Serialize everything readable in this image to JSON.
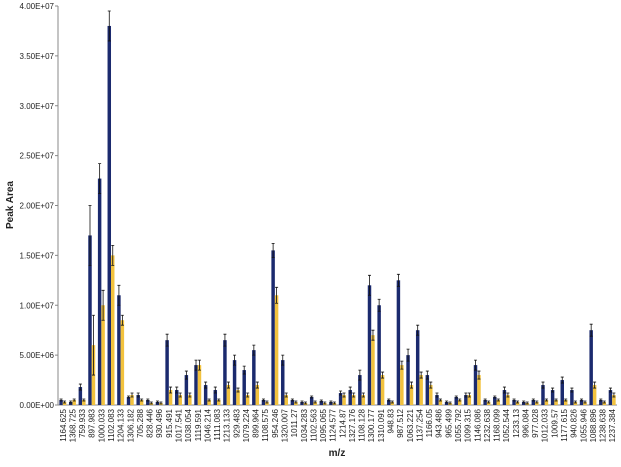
{
  "chart_data": {
    "type": "bar",
    "categories": [
      "1164.625",
      "1368.725",
      "759.933",
      "897.983",
      "1000.033",
      "1102.083",
      "1204.133",
      "1306.182",
      "705.288",
      "828.446",
      "930.496",
      "915.491",
      "1017.541",
      "1038.054",
      "1119.591",
      "1046.214",
      "1111.083",
      "1213.133",
      "929.483",
      "1079.224",
      "899.964",
      "1108.575",
      "954.246",
      "1320.007",
      "1011.27",
      "1034.283",
      "1102.563",
      "1095.065",
      "1124.577",
      "1214.87",
      "1327.176",
      "1108.128",
      "1300.177",
      "1310.091",
      "948.83",
      "987.512",
      "1063.221",
      "1137.254",
      "1166.05",
      "943.486",
      "965.499",
      "1055.792",
      "1099.315",
      "1146.086",
      "1232.638",
      "1168.099",
      "1052.544",
      "1233.13",
      "996.084",
      "977.028",
      "1012.033",
      "1009.57",
      "1177.615",
      "940.826",
      "1055.946",
      "1088.896",
      "1238.638",
      "1237.384"
    ],
    "series": [
      {
        "color": "#1b2a6e",
        "values": [
          500000,
          300000,
          1800000,
          17000000,
          22700000,
          38000000,
          11000000,
          800000,
          1000000,
          500000,
          300000,
          6500000,
          1500000,
          3000000,
          4000000,
          2000000,
          1500000,
          6500000,
          4500000,
          3500000,
          5500000,
          500000,
          15500000,
          4500000,
          500000,
          300000,
          800000,
          400000,
          300000,
          1200000,
          1500000,
          3000000,
          12000000,
          10000000,
          500000,
          12500000,
          5000000,
          7500000,
          3000000,
          1000000,
          300000,
          800000,
          1000000,
          4000000,
          500000,
          800000,
          1500000,
          500000,
          300000,
          500000,
          2000000,
          1500000,
          2500000,
          1500000,
          500000,
          7500000,
          500000,
          1500000
        ],
        "errors": [
          100000,
          100000,
          300000,
          3000000,
          1500000,
          1500000,
          1000000,
          100000,
          200000,
          100000,
          100000,
          600000,
          300000,
          400000,
          500000,
          300000,
          300000,
          600000,
          500000,
          400000,
          500000,
          100000,
          700000,
          500000,
          100000,
          100000,
          100000,
          100000,
          100000,
          200000,
          300000,
          500000,
          1000000,
          600000,
          100000,
          600000,
          600000,
          500000,
          400000,
          200000,
          100000,
          100000,
          200000,
          500000,
          100000,
          100000,
          300000,
          100000,
          100000,
          100000,
          300000,
          200000,
          300000,
          200000,
          100000,
          600000,
          100000,
          200000
        ]
      },
      {
        "color": "#f2c23e",
        "values": [
          300000,
          500000,
          500000,
          6000000,
          10000000,
          15000000,
          8500000,
          1000000,
          500000,
          200000,
          200000,
          1500000,
          1000000,
          1000000,
          4000000,
          500000,
          500000,
          2000000,
          1500000,
          1000000,
          2000000,
          300000,
          11000000,
          1000000,
          300000,
          200000,
          300000,
          200000,
          200000,
          1000000,
          1000000,
          1000000,
          7000000,
          3000000,
          300000,
          4000000,
          2000000,
          3000000,
          2000000,
          500000,
          200000,
          500000,
          1000000,
          3000000,
          300000,
          500000,
          1000000,
          300000,
          200000,
          300000,
          500000,
          500000,
          500000,
          300000,
          300000,
          2000000,
          300000,
          1000000
        ],
        "errors": [
          100000,
          100000,
          100000,
          3000000,
          1500000,
          1000000,
          500000,
          200000,
          100000,
          100000,
          100000,
          300000,
          200000,
          200000,
          500000,
          100000,
          100000,
          300000,
          200000,
          200000,
          300000,
          100000,
          800000,
          200000,
          100000,
          100000,
          100000,
          100000,
          100000,
          200000,
          200000,
          200000,
          500000,
          300000,
          100000,
          400000,
          300000,
          300000,
          300000,
          100000,
          100000,
          100000,
          200000,
          400000,
          100000,
          100000,
          200000,
          100000,
          100000,
          100000,
          100000,
          100000,
          100000,
          100000,
          100000,
          300000,
          100000,
          200000
        ]
      }
    ],
    "xlabel": "m/z",
    "ylabel": "Peak Area",
    "ylim": [
      0,
      40000000
    ],
    "yticks": [
      {
        "value": 0,
        "label": "0.00E+00"
      },
      {
        "value": 5000000,
        "label": "5.00E+06"
      },
      {
        "value": 10000000,
        "label": "1.00E+07"
      },
      {
        "value": 15000000,
        "label": "1.50E+07"
      },
      {
        "value": 20000000,
        "label": "2.00E+07"
      },
      {
        "value": 25000000,
        "label": "2.50E+07"
      },
      {
        "value": 30000000,
        "label": "3.00E+07"
      },
      {
        "value": 35000000,
        "label": "3.50E+07"
      },
      {
        "value": 40000000,
        "label": "4.00E+07"
      }
    ]
  }
}
